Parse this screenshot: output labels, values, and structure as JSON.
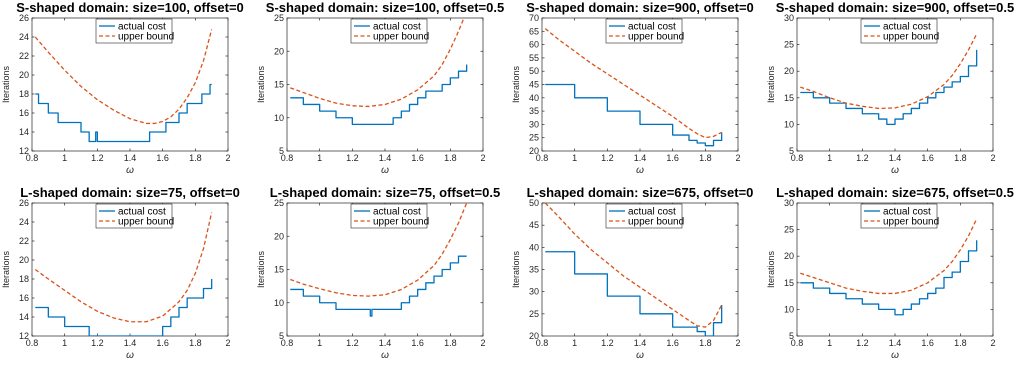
{
  "colors": {
    "actual": "#0072BD",
    "bound": "#D95319",
    "axis": "#262626",
    "legend_border": "#262626"
  },
  "chart_data": [
    {
      "type": "line",
      "title": "S-shaped domain: size=100, offset=0",
      "xlabel": "ω",
      "ylabel": "Iterations",
      "xlim": [
        0.8,
        2
      ],
      "ylim": [
        12,
        26
      ],
      "xticks": [
        0.8,
        1,
        1.2,
        1.4,
        1.6,
        1.8,
        2
      ],
      "yticks": [
        12,
        14,
        16,
        18,
        20,
        22,
        24,
        26
      ],
      "legend": "top-center",
      "grid": false,
      "series": [
        {
          "name": "actual cost",
          "style": "solid",
          "step": true,
          "x": [
            0.82,
            0.84,
            0.9,
            0.96,
            1.02,
            1.1,
            1.15,
            1.19,
            1.2,
            1.22,
            1.52,
            1.62,
            1.7,
            1.75,
            1.8,
            1.84,
            1.89,
            1.9
          ],
          "y": [
            18,
            17,
            16,
            15,
            15,
            14,
            13,
            14,
            13,
            13,
            14,
            15,
            16,
            17,
            17,
            18,
            19,
            19
          ]
        },
        {
          "name": "upper bound",
          "style": "dashed",
          "x": [
            0.82,
            0.9,
            1.0,
            1.1,
            1.2,
            1.3,
            1.4,
            1.5,
            1.55,
            1.6,
            1.65,
            1.7,
            1.75,
            1.8,
            1.85,
            1.9
          ],
          "y": [
            24.0,
            22.4,
            20.5,
            18.8,
            17.4,
            16.3,
            15.4,
            14.9,
            14.9,
            15.1,
            15.6,
            16.4,
            17.6,
            19.2,
            21.5,
            24.8
          ]
        }
      ]
    },
    {
      "type": "line",
      "title": "S-shaped domain: size=100, offset=0.5",
      "xlabel": "ω",
      "ylabel": "Iterations",
      "xlim": [
        0.8,
        2
      ],
      "ylim": [
        5,
        25
      ],
      "xticks": [
        0.8,
        1,
        1.2,
        1.4,
        1.6,
        1.8,
        2
      ],
      "yticks": [
        5,
        10,
        15,
        20,
        25
      ],
      "legend": "top-center",
      "grid": false,
      "series": [
        {
          "name": "actual cost",
          "style": "solid",
          "step": true,
          "x": [
            0.82,
            0.9,
            1.0,
            1.1,
            1.2,
            1.4,
            1.45,
            1.5,
            1.55,
            1.6,
            1.65,
            1.7,
            1.75,
            1.8,
            1.85,
            1.9
          ],
          "y": [
            13,
            12,
            11,
            10,
            9,
            9,
            10,
            11,
            12,
            13,
            14,
            14,
            15,
            16,
            17,
            18
          ]
        },
        {
          "name": "upper bound",
          "style": "dashed",
          "x": [
            0.82,
            0.9,
            1.0,
            1.1,
            1.2,
            1.3,
            1.4,
            1.5,
            1.6,
            1.7,
            1.75,
            1.8,
            1.85,
            1.9
          ],
          "y": [
            14.5,
            13.8,
            12.9,
            12.2,
            11.8,
            11.7,
            12.0,
            12.8,
            14.2,
            16.3,
            18.0,
            20.3,
            23.0,
            26.0
          ]
        }
      ]
    },
    {
      "type": "line",
      "title": "S-shaped domain: size=900, offset=0",
      "xlabel": "ω",
      "ylabel": "Iterations",
      "xlim": [
        0.8,
        2
      ],
      "ylim": [
        20,
        70
      ],
      "xticks": [
        0.8,
        1,
        1.2,
        1.4,
        1.6,
        1.8,
        2
      ],
      "yticks": [
        20,
        25,
        30,
        35,
        40,
        45,
        50,
        55,
        60,
        65,
        70
      ],
      "legend": "top-center",
      "grid": false,
      "series": [
        {
          "name": "actual cost",
          "style": "solid",
          "step": true,
          "x": [
            0.82,
            1.0,
            1.2,
            1.4,
            1.6,
            1.7,
            1.75,
            1.8,
            1.85,
            1.9
          ],
          "y": [
            45,
            40,
            35,
            30,
            26,
            24,
            23,
            22,
            24,
            27
          ]
        },
        {
          "name": "upper bound",
          "style": "dashed",
          "x": [
            0.82,
            0.9,
            1.0,
            1.1,
            1.2,
            1.3,
            1.4,
            1.5,
            1.6,
            1.7,
            1.75,
            1.8,
            1.85,
            1.9
          ],
          "y": [
            66,
            62,
            57.5,
            53,
            49,
            45,
            41,
            37,
            33,
            28.5,
            26.5,
            25,
            25.5,
            27
          ]
        }
      ]
    },
    {
      "type": "line",
      "title": "S-shaped domain: size=900, offset=0.5",
      "xlabel": "ω",
      "ylabel": "Iterations",
      "xlim": [
        0.8,
        2
      ],
      "ylim": [
        5,
        30
      ],
      "xticks": [
        0.8,
        1,
        1.2,
        1.4,
        1.6,
        1.8,
        2
      ],
      "yticks": [
        5,
        10,
        15,
        20,
        25,
        30
      ],
      "legend": "top-center",
      "grid": false,
      "series": [
        {
          "name": "actual cost",
          "style": "solid",
          "step": true,
          "x": [
            0.82,
            0.9,
            1.0,
            1.1,
            1.2,
            1.3,
            1.35,
            1.4,
            1.45,
            1.5,
            1.55,
            1.6,
            1.65,
            1.7,
            1.75,
            1.8,
            1.85,
            1.9
          ],
          "y": [
            16,
            15,
            14,
            13,
            12,
            11,
            10,
            11,
            12,
            13,
            14,
            15,
            16,
            17,
            18,
            19,
            21,
            24
          ]
        },
        {
          "name": "upper bound",
          "style": "dashed",
          "x": [
            0.82,
            0.9,
            1.0,
            1.1,
            1.2,
            1.3,
            1.4,
            1.5,
            1.6,
            1.7,
            1.75,
            1.8,
            1.85,
            1.9
          ],
          "y": [
            17,
            16.2,
            15,
            14,
            13.4,
            13,
            13.1,
            13.8,
            15.2,
            17.5,
            19.2,
            21.4,
            24,
            27
          ]
        }
      ]
    },
    {
      "type": "line",
      "title": "L-shaped domain: size=75, offset=0",
      "xlabel": "ω",
      "ylabel": "Iterations",
      "xlim": [
        0.8,
        2
      ],
      "ylim": [
        12,
        26
      ],
      "xticks": [
        0.8,
        1,
        1.2,
        1.4,
        1.6,
        1.8,
        2
      ],
      "yticks": [
        12,
        14,
        16,
        18,
        20,
        22,
        24,
        26
      ],
      "legend": "top-center",
      "grid": false,
      "series": [
        {
          "name": "actual cost",
          "style": "solid",
          "step": true,
          "x": [
            0.82,
            0.9,
            1.0,
            1.15,
            1.6,
            1.65,
            1.7,
            1.75,
            1.8,
            1.85,
            1.9
          ],
          "y": [
            15,
            14,
            13,
            12,
            13,
            14,
            15,
            16,
            16,
            17,
            18
          ]
        },
        {
          "name": "upper bound",
          "style": "dashed",
          "x": [
            0.82,
            0.9,
            1.0,
            1.1,
            1.2,
            1.3,
            1.4,
            1.5,
            1.6,
            1.7,
            1.75,
            1.8,
            1.85,
            1.9
          ],
          "y": [
            19,
            18,
            16.8,
            15.6,
            14.6,
            13.9,
            13.5,
            13.5,
            14.1,
            15.6,
            16.8,
            18.6,
            21.2,
            25
          ]
        }
      ]
    },
    {
      "type": "line",
      "title": "L-shaped domain: size=75, offset=0.5",
      "xlabel": "ω",
      "ylabel": "Iterations",
      "xlim": [
        0.8,
        2
      ],
      "ylim": [
        5,
        25
      ],
      "xticks": [
        0.8,
        1,
        1.2,
        1.4,
        1.6,
        1.8,
        2
      ],
      "yticks": [
        5,
        10,
        15,
        20,
        25
      ],
      "legend": "top-center",
      "grid": false,
      "series": [
        {
          "name": "actual cost",
          "style": "solid",
          "step": true,
          "x": [
            0.82,
            0.9,
            1.0,
            1.1,
            1.3,
            1.31,
            1.32,
            1.4,
            1.5,
            1.55,
            1.6,
            1.65,
            1.7,
            1.75,
            1.8,
            1.85,
            1.9
          ],
          "y": [
            12,
            11,
            10,
            9,
            9,
            8,
            9,
            9,
            10,
            11,
            12,
            13,
            14,
            15,
            16,
            17,
            17
          ]
        },
        {
          "name": "upper bound",
          "style": "dashed",
          "x": [
            0.82,
            0.9,
            1.0,
            1.1,
            1.2,
            1.3,
            1.4,
            1.5,
            1.6,
            1.7,
            1.75,
            1.8,
            1.85,
            1.9
          ],
          "y": [
            13.5,
            12.8,
            12.1,
            11.5,
            11.1,
            11,
            11.2,
            12,
            13.4,
            15.6,
            17.3,
            19.5,
            22,
            25
          ]
        }
      ]
    },
    {
      "type": "line",
      "title": "L-shaped domain: size=675, offset=0",
      "xlabel": "ω",
      "ylabel": "Iterations",
      "xlim": [
        0.8,
        2
      ],
      "ylim": [
        20,
        50
      ],
      "xticks": [
        0.8,
        1,
        1.2,
        1.4,
        1.6,
        1.8,
        2
      ],
      "yticks": [
        20,
        25,
        30,
        35,
        40,
        45,
        50
      ],
      "legend": "top-center",
      "grid": false,
      "series": [
        {
          "name": "actual cost",
          "style": "solid",
          "step": true,
          "x": [
            0.82,
            1.0,
            1.2,
            1.4,
            1.6,
            1.75,
            1.8,
            1.85,
            1.9
          ],
          "y": [
            39,
            34,
            29,
            25,
            22,
            21,
            20,
            23,
            27
          ]
        },
        {
          "name": "upper bound",
          "style": "dashed",
          "x": [
            0.82,
            0.9,
            1.0,
            1.1,
            1.2,
            1.3,
            1.4,
            1.5,
            1.6,
            1.7,
            1.75,
            1.8,
            1.85,
            1.9
          ],
          "y": [
            50,
            47,
            43,
            39.5,
            36.5,
            33.5,
            31,
            28.5,
            26,
            23.5,
            22.3,
            22,
            23.5,
            27
          ]
        }
      ]
    },
    {
      "type": "line",
      "title": "L-shaped domain: size=675, offset=0.5",
      "xlabel": "ω",
      "ylabel": "Iterations",
      "xlim": [
        0.8,
        2
      ],
      "ylim": [
        5,
        30
      ],
      "xticks": [
        0.8,
        1,
        1.2,
        1.4,
        1.6,
        1.8,
        2
      ],
      "yticks": [
        5,
        10,
        15,
        20,
        25,
        30
      ],
      "legend": "top-center",
      "grid": false,
      "series": [
        {
          "name": "actual cost",
          "style": "solid",
          "step": true,
          "x": [
            0.82,
            0.9,
            1.0,
            1.1,
            1.2,
            1.3,
            1.4,
            1.45,
            1.5,
            1.55,
            1.6,
            1.65,
            1.7,
            1.75,
            1.8,
            1.85,
            1.9
          ],
          "y": [
            15,
            14,
            13,
            12,
            11,
            10,
            9,
            10,
            11,
            12,
            13,
            14,
            16,
            17,
            19,
            21,
            23
          ]
        },
        {
          "name": "upper bound",
          "style": "dashed",
          "x": [
            0.82,
            0.9,
            1.0,
            1.1,
            1.2,
            1.3,
            1.4,
            1.5,
            1.6,
            1.7,
            1.75,
            1.8,
            1.85,
            1.9
          ],
          "y": [
            16.8,
            16,
            15,
            14,
            13.4,
            13,
            13,
            13.6,
            15,
            17.3,
            19,
            21.2,
            23.8,
            27
          ]
        }
      ]
    }
  ]
}
